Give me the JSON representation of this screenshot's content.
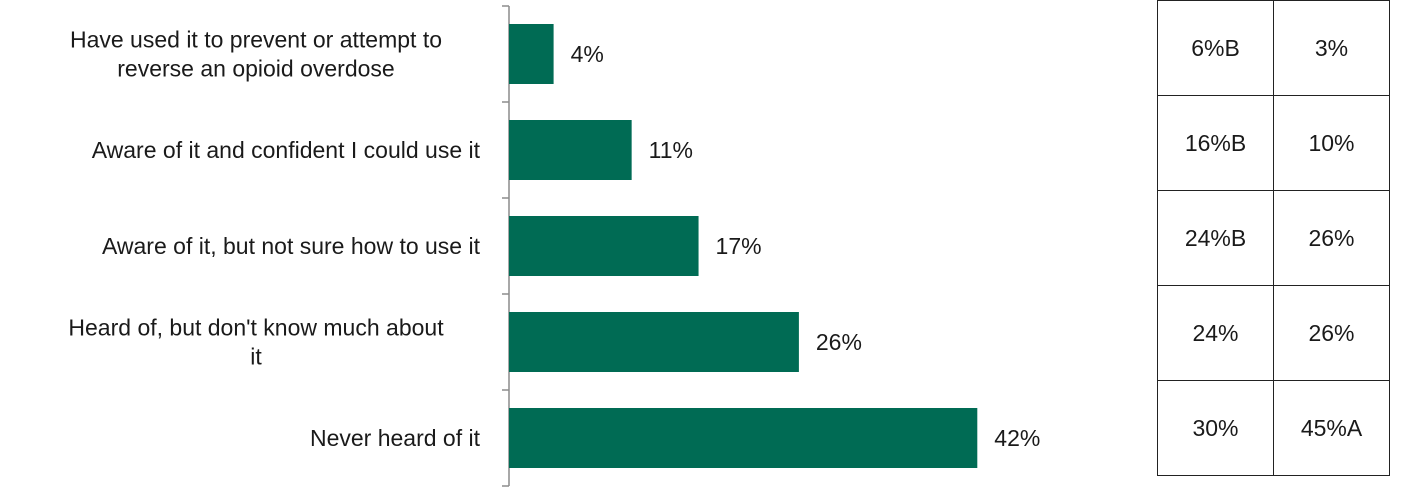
{
  "chart_data": {
    "type": "bar",
    "orientation": "horizontal",
    "categories": [
      [
        "Have used it to prevent or attempt to",
        "reverse an opioid overdose"
      ],
      [
        "Aware of it and confident I could use it"
      ],
      [
        "Aware of it, but not sure how to use it"
      ],
      [
        "Heard of, but don't know much about",
        "it"
      ],
      [
        "Never heard of it"
      ]
    ],
    "values": [
      4,
      11,
      17,
      26,
      42
    ],
    "value_labels": [
      "4%",
      "11%",
      "17%",
      "26%",
      "42%"
    ],
    "xlim": [
      0,
      50
    ],
    "bar_color": "#006b54",
    "grid": false,
    "title": "",
    "xlabel": "",
    "ylabel": ""
  },
  "table": {
    "rows": [
      [
        "6%B",
        "3%"
      ],
      [
        "16%B",
        "10%"
      ],
      [
        "24%B",
        "26%"
      ],
      [
        "24%",
        "26%"
      ],
      [
        "30%",
        "45%A"
      ]
    ]
  }
}
